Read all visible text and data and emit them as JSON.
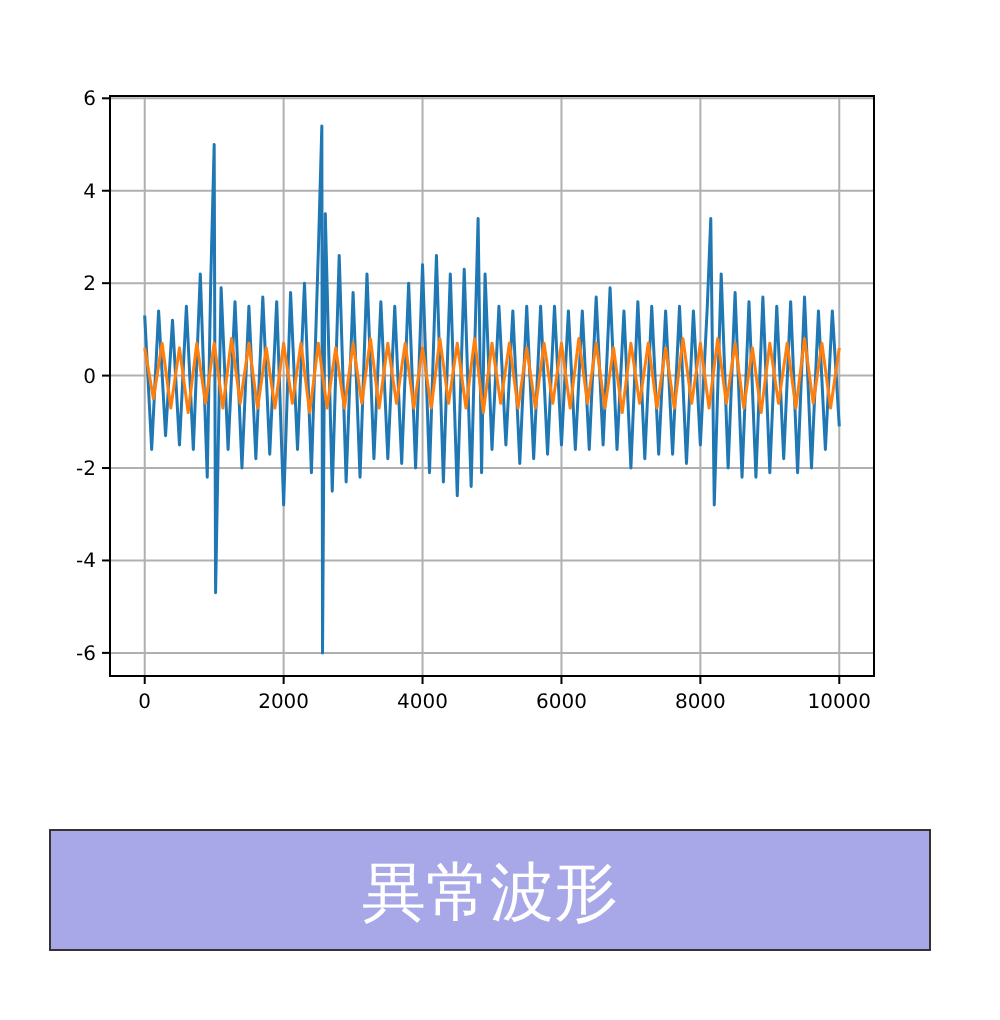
{
  "chart_data": {
    "type": "line",
    "xlim": [
      -500,
      10500
    ],
    "ylim": [
      -6.5,
      6.05
    ],
    "xticks": [
      0,
      2000,
      4000,
      6000,
      8000,
      10000
    ],
    "yticks": [
      -6,
      -4,
      -2,
      0,
      2,
      4,
      6
    ],
    "grid": true,
    "series": [
      {
        "color": "#1f77b4",
        "x": [
          0,
          100,
          200,
          300,
          400,
          500,
          600,
          700,
          800,
          900,
          950,
          1000,
          1020,
          1100,
          1200,
          1300,
          1400,
          1500,
          1600,
          1700,
          1800,
          1900,
          2000,
          2100,
          2200,
          2300,
          2400,
          2500,
          2550,
          2560,
          2600,
          2700,
          2800,
          2900,
          3000,
          3100,
          3200,
          3300,
          3400,
          3500,
          3600,
          3700,
          3800,
          3900,
          4000,
          4100,
          4200,
          4300,
          4400,
          4500,
          4600,
          4700,
          4800,
          4850,
          4900,
          5000,
          5100,
          5200,
          5300,
          5400,
          5500,
          5600,
          5700,
          5800,
          5900,
          6000,
          6100,
          6200,
          6300,
          6400,
          6500,
          6600,
          6700,
          6800,
          6900,
          7000,
          7100,
          7200,
          7300,
          7400,
          7500,
          7600,
          7700,
          7800,
          7900,
          8000,
          8100,
          8150,
          8200,
          8300,
          8400,
          8500,
          8600,
          8700,
          8800,
          8900,
          9000,
          9100,
          9200,
          9300,
          9400,
          9500,
          9600,
          9700,
          9800,
          9900,
          10000
        ],
        "values": [
          1.3,
          -1.6,
          1.4,
          -1.3,
          1.2,
          -1.5,
          1.5,
          -1.6,
          2.2,
          -2.2,
          2.0,
          5.0,
          -4.7,
          1.9,
          -1.6,
          1.6,
          -2.0,
          1.5,
          -1.8,
          1.7,
          -1.7,
          1.6,
          -2.8,
          1.8,
          -1.6,
          2.0,
          -2.1,
          2.7,
          5.4,
          -6.0,
          3.5,
          -2.5,
          2.6,
          -2.3,
          1.8,
          -2.2,
          2.2,
          -1.8,
          1.6,
          -1.8,
          1.5,
          -1.9,
          2.0,
          -2.0,
          2.4,
          -2.1,
          2.6,
          -2.3,
          2.2,
          -2.6,
          2.3,
          -2.4,
          3.4,
          -2.1,
          2.2,
          -1.6,
          1.5,
          -1.5,
          1.4,
          -1.9,
          1.5,
          -1.8,
          1.5,
          -1.7,
          1.5,
          -1.5,
          1.4,
          -1.6,
          1.4,
          -1.6,
          1.7,
          -1.5,
          1.9,
          -1.6,
          1.4,
          -2.0,
          1.6,
          -1.8,
          1.5,
          -1.7,
          1.4,
          -1.7,
          1.5,
          -1.9,
          1.4,
          -1.5,
          1.5,
          3.4,
          -2.8,
          2.2,
          -2.0,
          1.8,
          -2.2,
          1.6,
          -2.2,
          1.7,
          -2.1,
          1.5,
          -1.8,
          1.6,
          -2.1,
          1.7,
          -2.0,
          1.4,
          -1.6,
          1.4,
          -1.1
        ]
      },
      {
        "color": "#ff7f0e",
        "x": [
          0,
          125,
          250,
          375,
          500,
          625,
          750,
          875,
          1000,
          1125,
          1250,
          1375,
          1500,
          1625,
          1750,
          1875,
          2000,
          2125,
          2250,
          2375,
          2500,
          2625,
          2750,
          2875,
          3000,
          3125,
          3250,
          3375,
          3500,
          3625,
          3750,
          3875,
          4000,
          4125,
          4250,
          4375,
          4500,
          4625,
          4750,
          4875,
          5000,
          5125,
          5250,
          5375,
          5500,
          5625,
          5750,
          5875,
          6000,
          6125,
          6250,
          6375,
          6500,
          6625,
          6750,
          6875,
          7000,
          7125,
          7250,
          7375,
          7500,
          7625,
          7750,
          7875,
          8000,
          8125,
          8250,
          8375,
          8500,
          8625,
          8750,
          8875,
          9000,
          9125,
          9250,
          9375,
          9500,
          9625,
          9750,
          9875,
          10000
        ],
        "values": [
          0.6,
          -0.5,
          0.7,
          -0.7,
          0.6,
          -0.8,
          0.7,
          -0.6,
          0.7,
          -0.7,
          0.8,
          -0.6,
          0.7,
          -0.7,
          0.6,
          -0.7,
          0.7,
          -0.6,
          0.7,
          -0.8,
          0.7,
          -0.7,
          0.6,
          -0.7,
          0.7,
          -0.6,
          0.8,
          -0.7,
          0.7,
          -0.6,
          0.7,
          -0.7,
          0.6,
          -0.7,
          0.8,
          -0.6,
          0.7,
          -0.7,
          0.8,
          -0.8,
          0.7,
          -0.6,
          0.7,
          -0.7,
          0.6,
          -0.7,
          0.7,
          -0.6,
          0.7,
          -0.7,
          0.8,
          -0.6,
          0.7,
          -0.7,
          0.6,
          -0.8,
          0.7,
          -0.6,
          0.7,
          -0.7,
          0.6,
          -0.7,
          0.8,
          -0.6,
          0.7,
          -0.7,
          0.8,
          -0.6,
          0.7,
          -0.7,
          0.6,
          -0.8,
          0.7,
          -0.6,
          0.7,
          -0.7,
          0.8,
          -0.6,
          0.7,
          -0.7,
          0.6
        ]
      }
    ],
    "annotations": [
      "異常波形"
    ]
  }
}
